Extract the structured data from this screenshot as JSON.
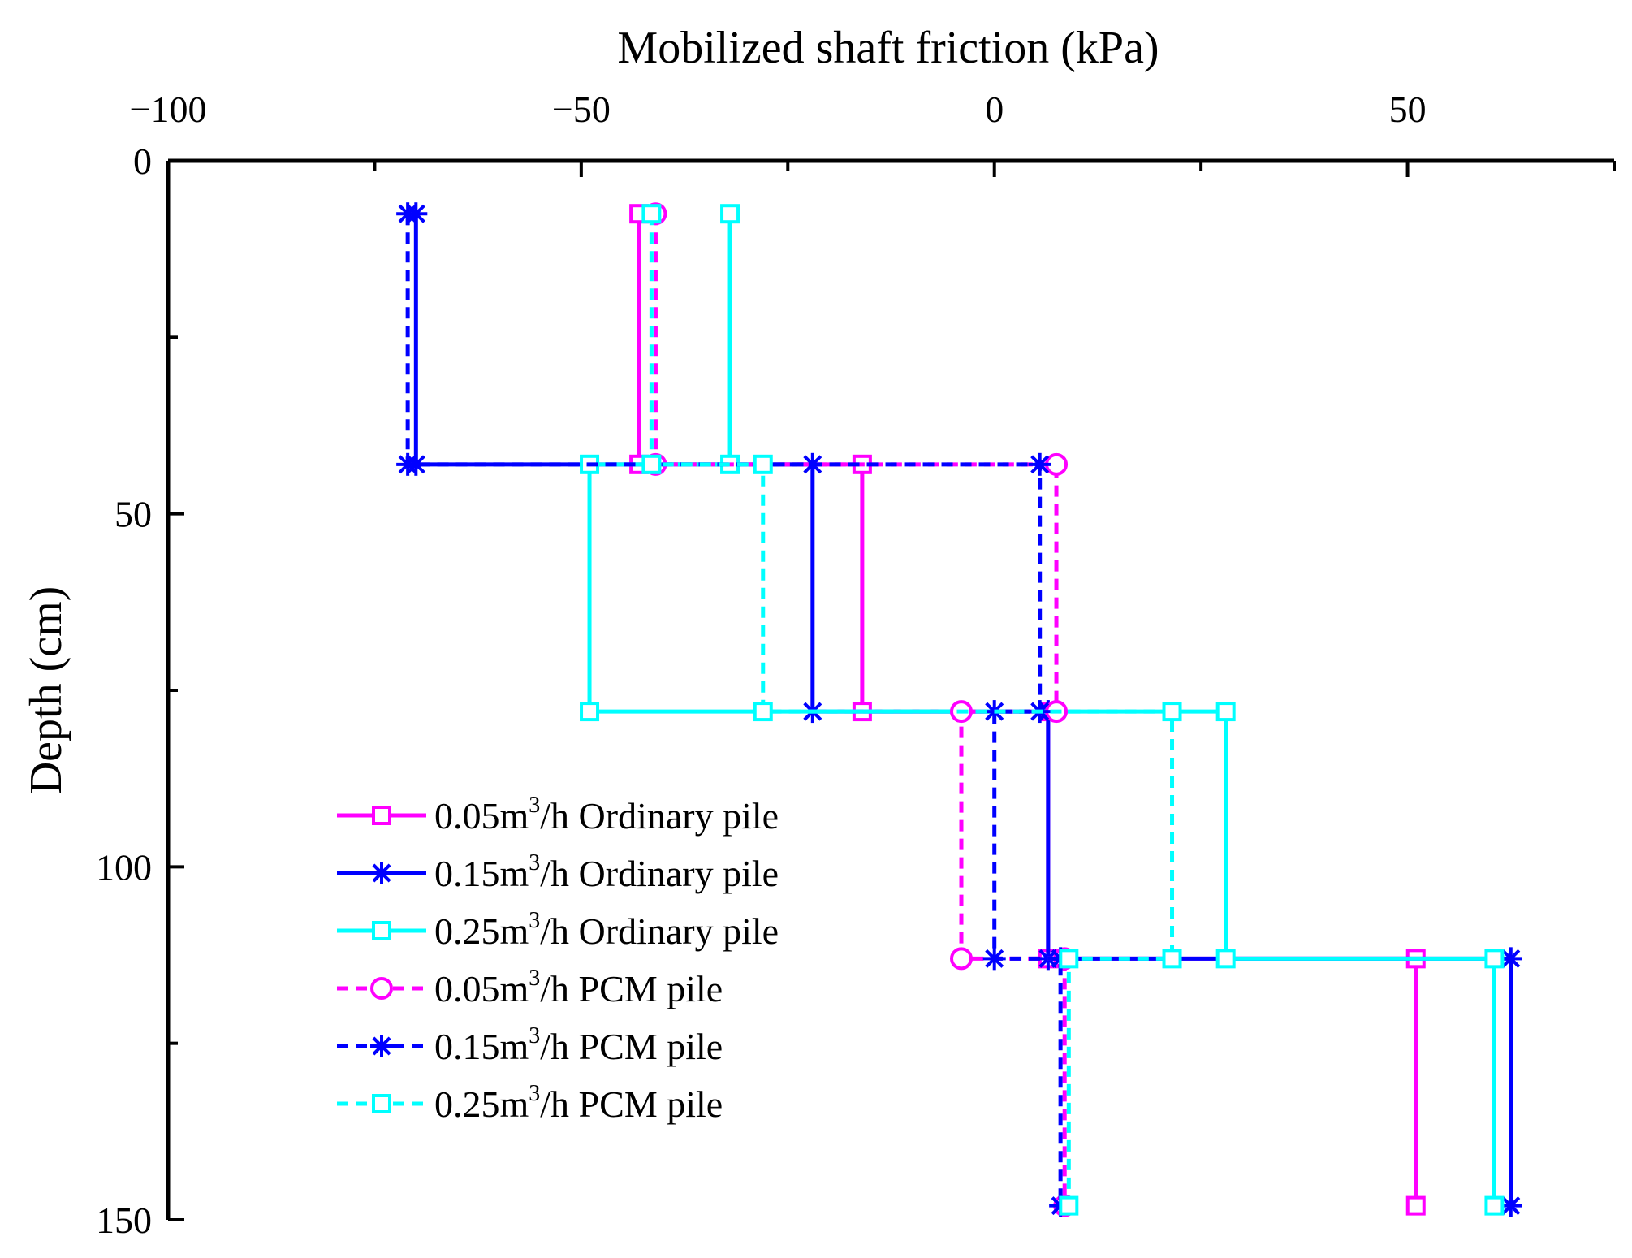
{
  "chart_data": {
    "type": "line",
    "title": "",
    "xlabel": "Mobilized shaft friction (kPa)",
    "ylabel": "Depth (cm)",
    "xlim": [
      -100,
      75
    ],
    "ylim": [
      0,
      150
    ],
    "x_axis_position": "top",
    "y_axis_inverted": true,
    "grid": false,
    "legend_position": "lower-left",
    "xticks": [
      -100,
      -50,
      0,
      50
    ],
    "xtick_labels": [
      "−100",
      "−50",
      "0",
      "50"
    ],
    "yticks": [
      0,
      50,
      100,
      150
    ],
    "ytick_labels": [
      "0",
      "50",
      "100",
      "150"
    ],
    "series": [
      {
        "name": "0.05m3/h Ordinary pile",
        "label_prefix": "0.05m",
        "label_sup": "3",
        "label_suffix": "/h Ordinary pile",
        "color": "#ff00ff",
        "dash": "solid",
        "marker": "square",
        "points": [
          [
            -43,
            7.5
          ],
          [
            -43,
            43
          ],
          [
            -16,
            43
          ],
          [
            -16,
            78
          ],
          [
            6.5,
            78
          ],
          [
            6.5,
            113
          ],
          [
            51,
            113
          ],
          [
            51,
            148
          ]
        ]
      },
      {
        "name": "0.15m3/h Ordinary pile",
        "label_prefix": "0.15m",
        "label_sup": "3",
        "label_suffix": "/h Ordinary pile",
        "color": "#0000ff",
        "dash": "solid",
        "marker": "asterisk",
        "points": [
          [
            -70,
            7.5
          ],
          [
            -70,
            43
          ],
          [
            -22,
            43
          ],
          [
            -22,
            78
          ],
          [
            6.5,
            78
          ],
          [
            6.5,
            113
          ],
          [
            62.5,
            113
          ],
          [
            62.5,
            148
          ]
        ]
      },
      {
        "name": "0.25m3/h Ordinary pile",
        "label_prefix": "0.25m",
        "label_sup": "3",
        "label_suffix": "/h Ordinary pile",
        "color": "#00ffff",
        "dash": "solid",
        "marker": "square",
        "points": [
          [
            -32,
            7.5
          ],
          [
            -32,
            43
          ],
          [
            -49,
            43
          ],
          [
            -49,
            78
          ],
          [
            28,
            78
          ],
          [
            28,
            113
          ],
          [
            60.5,
            113
          ],
          [
            60.5,
            148
          ]
        ]
      },
      {
        "name": "0.05m3/h PCM pile",
        "label_prefix": "0.05m",
        "label_sup": "3",
        "label_suffix": "/h PCM pile",
        "color": "#ff00ff",
        "dash": "dashed",
        "marker": "circle",
        "points": [
          [
            -41,
            7.5
          ],
          [
            -41,
            43
          ],
          [
            7.5,
            43
          ],
          [
            7.5,
            78
          ],
          [
            -4,
            78
          ],
          [
            -4,
            113
          ],
          [
            8.5,
            113
          ],
          [
            8.5,
            148
          ]
        ]
      },
      {
        "name": "0.15m3/h PCM pile",
        "label_prefix": "0.15m",
        "label_sup": "3",
        "label_suffix": "/h PCM pile",
        "color": "#0000ff",
        "dash": "dashed",
        "marker": "asterisk",
        "points": [
          [
            -71,
            7.5
          ],
          [
            -71,
            43
          ],
          [
            5.5,
            43
          ],
          [
            5.5,
            78
          ],
          [
            0,
            78
          ],
          [
            0,
            113
          ],
          [
            8,
            113
          ],
          [
            8,
            148
          ]
        ]
      },
      {
        "name": "0.25m3/h PCM pile",
        "label_prefix": "0.25m",
        "label_sup": "3",
        "label_suffix": "/h PCM pile",
        "color": "#00ffff",
        "dash": "dashed",
        "marker": "square",
        "points": [
          [
            -41.5,
            7.5
          ],
          [
            -41.5,
            43
          ],
          [
            -28,
            43
          ],
          [
            -28,
            78
          ],
          [
            21.5,
            78
          ],
          [
            21.5,
            113
          ],
          [
            9,
            113
          ],
          [
            9,
            148
          ]
        ]
      }
    ]
  }
}
